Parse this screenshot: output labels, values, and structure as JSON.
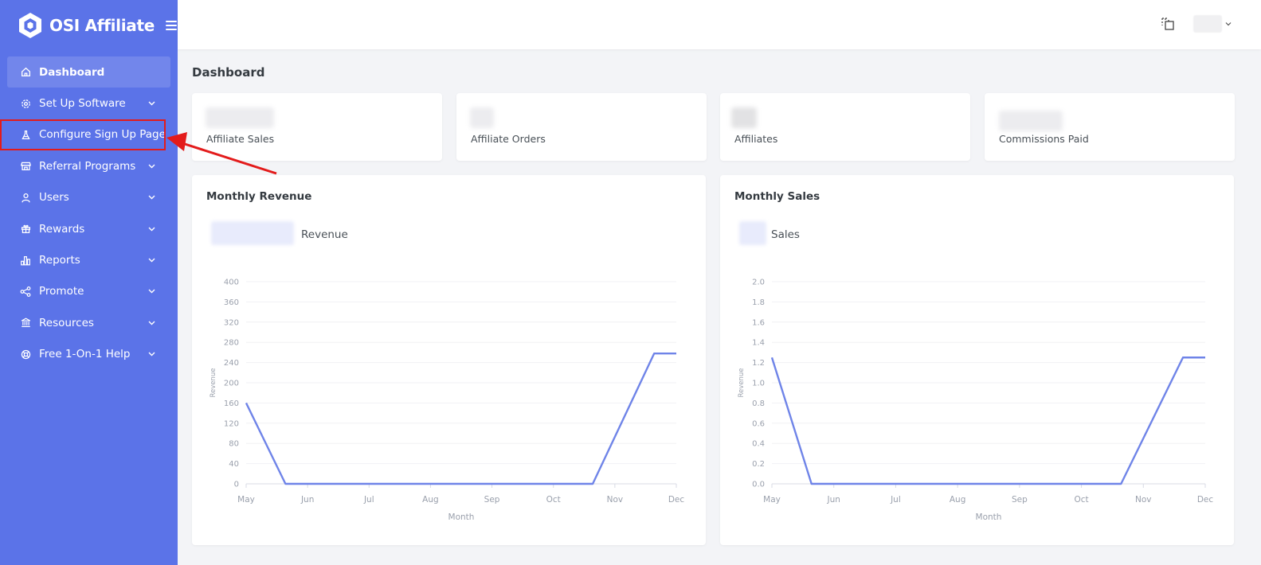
{
  "app": {
    "brand_name": "OSI Affiliate",
    "accent": "#5b73e8",
    "line_color": "#6f84e8",
    "highlight_color": "#e31b1b"
  },
  "sidebar": {
    "items": [
      {
        "label": "Dashboard",
        "icon": "home-icon",
        "active": true,
        "has_chevron": false
      },
      {
        "label": "Set Up Software",
        "icon": "gear-icon",
        "has_chevron": true
      },
      {
        "label": "Configure Sign Up Page",
        "icon": "flask-icon",
        "has_chevron": false,
        "highlighted": true
      },
      {
        "label": "Referral Programs",
        "icon": "store-icon",
        "has_chevron": true
      },
      {
        "label": "Users",
        "icon": "user-icon",
        "has_chevron": true
      },
      {
        "label": "Rewards",
        "icon": "gift-icon",
        "has_chevron": true
      },
      {
        "label": "Reports",
        "icon": "bar-chart-icon",
        "has_chevron": true
      },
      {
        "label": "Promote",
        "icon": "share-icon",
        "has_chevron": true
      },
      {
        "label": "Resources",
        "icon": "bank-icon",
        "has_chevron": true
      },
      {
        "label": "Free 1-On-1 Help",
        "icon": "lifebuoy-icon",
        "has_chevron": true
      }
    ]
  },
  "main": {
    "title": "Dashboard",
    "stats": [
      {
        "caption": "Affiliate Sales"
      },
      {
        "caption": "Affiliate Orders"
      },
      {
        "caption": "Affiliates"
      },
      {
        "caption": "Commissions Paid"
      }
    ]
  },
  "chart_data": [
    {
      "type": "line",
      "title": "Monthly Revenue",
      "legend": "Revenue",
      "xlabel": "Month",
      "ylabel": "Revenue",
      "x": [
        "May",
        "Jun",
        "Jul",
        "Aug",
        "Sep",
        "Oct",
        "Nov",
        "Dec"
      ],
      "points": [
        [
          "May",
          160
        ],
        [
          "Jun-",
          0
        ],
        [
          "Nov-",
          0
        ],
        [
          "Dec-",
          258
        ],
        [
          "Dec",
          258
        ]
      ],
      "ylim": [
        0,
        400
      ],
      "yticks": [
        0,
        40,
        80,
        120,
        160,
        200,
        240,
        280,
        320,
        360,
        400
      ],
      "ytick_labels": [
        "0",
        "40",
        "80",
        "120",
        "160",
        "200",
        "240",
        "280",
        "320",
        "360",
        "400"
      ],
      "grid": true
    },
    {
      "type": "line",
      "title": "Monthly Sales",
      "legend": "Sales",
      "xlabel": "Month",
      "ylabel": "Revenue",
      "x": [
        "May",
        "Jun",
        "Jul",
        "Aug",
        "Sep",
        "Oct",
        "Nov",
        "Dec"
      ],
      "points": [
        [
          "May",
          1.25
        ],
        [
          "Jun-",
          0
        ],
        [
          "Nov-",
          0
        ],
        [
          "Dec-",
          1.25
        ],
        [
          "Dec",
          1.25
        ]
      ],
      "ylim": [
        0,
        2.0
      ],
      "yticks": [
        0,
        0.2,
        0.4,
        0.6,
        0.8,
        1.0,
        1.2,
        1.4,
        1.6,
        1.8,
        2.0
      ],
      "ytick_labels": [
        "0.0",
        "0.2",
        "0.4",
        "0.6",
        "0.8",
        "1.0",
        "1.2",
        "1.4",
        "1.6",
        "1.8",
        "2.0"
      ],
      "grid": true
    }
  ]
}
